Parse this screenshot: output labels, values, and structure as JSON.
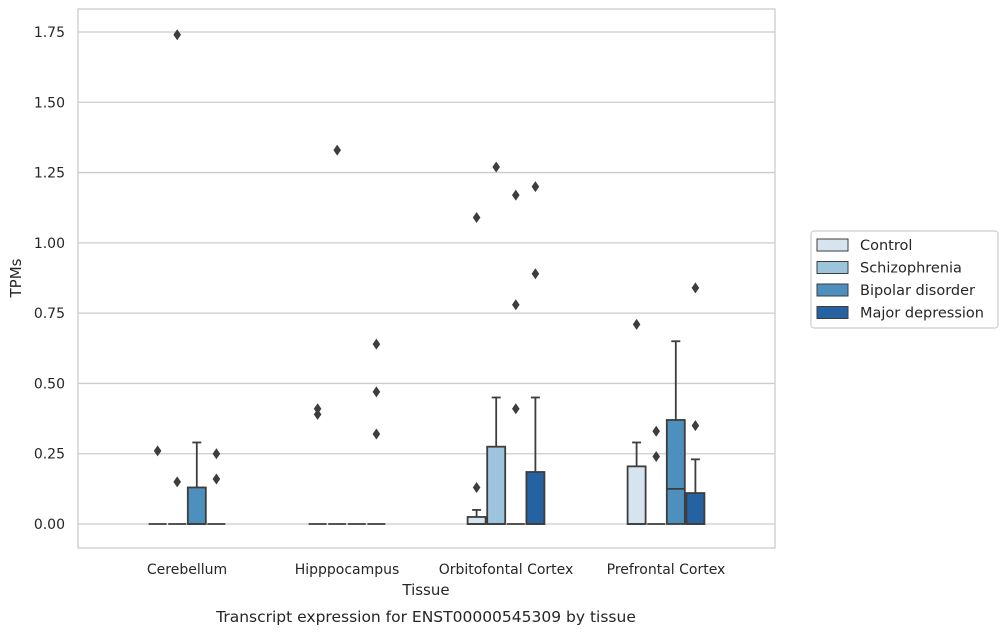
{
  "caption": "Transcript expression for ENST00000545309 by tissue",
  "chart_data": {
    "type": "box",
    "xlabel": "Tissue",
    "ylabel": "TPMs",
    "ylim": [
      -0.085,
      1.83
    ],
    "yticks": [
      "0.00",
      "0.25",
      "0.50",
      "0.75",
      "1.00",
      "1.25",
      "1.50",
      "1.75"
    ],
    "ytick_values": [
      0,
      0.25,
      0.5,
      0.75,
      1.0,
      1.25,
      1.5,
      1.75
    ],
    "grid": "horizontal",
    "legend_position": "right",
    "categories": [
      "Cerebellum",
      "Hipppocampus",
      "Orbitofontal Cortex",
      "Prefrontal Cortex"
    ],
    "series": [
      {
        "name": "Control",
        "color": "#d6e4f0"
      },
      {
        "name": "Schizophrenia",
        "color": "#9cc4dc"
      },
      {
        "name": "Bipolar disorder",
        "color": "#4e90bd"
      },
      {
        "name": "Major depression",
        "color": "#2462a1"
      }
    ],
    "boxes": [
      [
        {
          "q1": 0,
          "median": 0,
          "q3": 0,
          "whisker_low": 0,
          "whisker_high": 0,
          "outliers": [
            0.26
          ]
        },
        {
          "q1": 0,
          "median": 0,
          "q3": 0,
          "whisker_low": 0,
          "whisker_high": 0,
          "outliers": [
            0.15,
            1.74
          ]
        },
        {
          "q1": 0,
          "median": 0,
          "q3": 0.13,
          "whisker_low": 0,
          "whisker_high": 0.29,
          "outliers": []
        },
        {
          "q1": 0,
          "median": 0,
          "q3": 0,
          "whisker_low": 0,
          "whisker_high": 0,
          "outliers": [
            0.25,
            0.16
          ]
        }
      ],
      [
        {
          "q1": 0,
          "median": 0,
          "q3": 0,
          "whisker_low": 0,
          "whisker_high": 0,
          "outliers": [
            0.41,
            0.39
          ]
        },
        {
          "q1": 0,
          "median": 0,
          "q3": 0,
          "whisker_low": 0,
          "whisker_high": 0,
          "outliers": [
            1.33
          ]
        },
        {
          "q1": 0,
          "median": 0,
          "q3": 0,
          "whisker_low": 0,
          "whisker_high": 0,
          "outliers": []
        },
        {
          "q1": 0,
          "median": 0,
          "q3": 0,
          "whisker_low": 0,
          "whisker_high": 0,
          "outliers": [
            0.64,
            0.47,
            0.32
          ]
        }
      ],
      [
        {
          "q1": 0,
          "median": 0,
          "q3": 0.025,
          "whisker_low": 0,
          "whisker_high": 0.05,
          "outliers": [
            0.13,
            1.09
          ]
        },
        {
          "q1": 0,
          "median": 0,
          "q3": 0.275,
          "whisker_low": 0,
          "whisker_high": 0.45,
          "outliers": [
            1.27
          ]
        },
        {
          "q1": 0,
          "median": 0,
          "q3": 0,
          "whisker_low": 0,
          "whisker_high": 0,
          "outliers": [
            0.41,
            0.78,
            1.17
          ]
        },
        {
          "q1": 0,
          "median": 0,
          "q3": 0.185,
          "whisker_low": 0,
          "whisker_high": 0.45,
          "outliers": [
            0.89,
            1.2
          ]
        }
      ],
      [
        {
          "q1": 0,
          "median": 0,
          "q3": 0.205,
          "whisker_low": 0,
          "whisker_high": 0.29,
          "outliers": [
            0.71
          ]
        },
        {
          "q1": 0,
          "median": 0,
          "q3": 0,
          "whisker_low": 0,
          "whisker_high": 0,
          "outliers": [
            0.24,
            0.33
          ]
        },
        {
          "q1": 0,
          "median": 0.125,
          "q3": 0.37,
          "whisker_low": 0,
          "whisker_high": 0.65,
          "outliers": []
        },
        {
          "q1": 0,
          "median": 0,
          "q3": 0.11,
          "whisker_low": 0,
          "whisker_high": 0.23,
          "outliers": [
            0.35,
            0.84
          ]
        }
      ]
    ]
  }
}
